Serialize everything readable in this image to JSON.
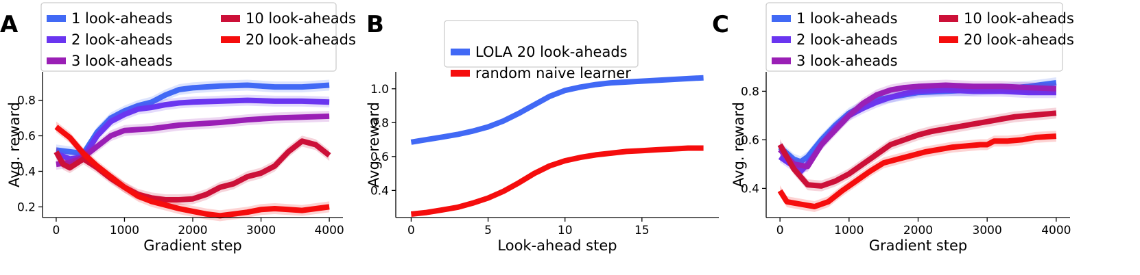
{
  "chart_data": [
    {
      "panel": "A",
      "type": "line",
      "xlabel": "Gradient step",
      "ylabel": "Avg. reward",
      "xlim": [
        -200,
        4200
      ],
      "ylim": [
        0.14,
        0.96
      ],
      "xticks": [
        0,
        1000,
        2000,
        3000,
        4000
      ],
      "yticks": [
        0.2,
        0.4,
        0.6,
        0.8
      ],
      "legend_position": "top-left",
      "legend_columns": 2,
      "series": [
        {
          "name": "1 look-aheads",
          "color": "#4169f5",
          "points": [
            [
              0,
              0.52
            ],
            [
              200,
              0.51
            ],
            [
              400,
              0.5
            ],
            [
              600,
              0.62
            ],
            [
              800,
              0.7
            ],
            [
              1000,
              0.74
            ],
            [
              1200,
              0.77
            ],
            [
              1400,
              0.79
            ],
            [
              1600,
              0.83
            ],
            [
              1800,
              0.86
            ],
            [
              2000,
              0.87
            ],
            [
              2400,
              0.88
            ],
            [
              2800,
              0.885
            ],
            [
              3200,
              0.875
            ],
            [
              3600,
              0.875
            ],
            [
              4000,
              0.885
            ]
          ]
        },
        {
          "name": "2 look-aheads",
          "color": "#6a35f0",
          "points": [
            [
              0,
              0.5
            ],
            [
              200,
              0.47
            ],
            [
              400,
              0.48
            ],
            [
              600,
              0.6
            ],
            [
              800,
              0.68
            ],
            [
              1000,
              0.72
            ],
            [
              1200,
              0.75
            ],
            [
              1400,
              0.76
            ],
            [
              1600,
              0.775
            ],
            [
              1800,
              0.785
            ],
            [
              2000,
              0.79
            ],
            [
              2400,
              0.795
            ],
            [
              2800,
              0.8
            ],
            [
              3200,
              0.795
            ],
            [
              3600,
              0.795
            ],
            [
              4000,
              0.79
            ]
          ]
        },
        {
          "name": "3 look-aheads",
          "color": "#9a1fb5",
          "points": [
            [
              0,
              0.44
            ],
            [
              200,
              0.45
            ],
            [
              400,
              0.48
            ],
            [
              600,
              0.54
            ],
            [
              800,
              0.6
            ],
            [
              1000,
              0.63
            ],
            [
              1200,
              0.635
            ],
            [
              1400,
              0.64
            ],
            [
              1600,
              0.65
            ],
            [
              1800,
              0.66
            ],
            [
              2000,
              0.665
            ],
            [
              2400,
              0.675
            ],
            [
              2800,
              0.69
            ],
            [
              3200,
              0.7
            ],
            [
              3600,
              0.705
            ],
            [
              4000,
              0.71
            ]
          ]
        },
        {
          "name": "10 look-aheads",
          "color": "#cc1038",
          "points": [
            [
              0,
              0.51
            ],
            [
              100,
              0.44
            ],
            [
              200,
              0.42
            ],
            [
              400,
              0.47
            ],
            [
              600,
              0.42
            ],
            [
              800,
              0.36
            ],
            [
              1000,
              0.31
            ],
            [
              1200,
              0.27
            ],
            [
              1400,
              0.25
            ],
            [
              1600,
              0.24
            ],
            [
              1800,
              0.24
            ],
            [
              2000,
              0.245
            ],
            [
              2200,
              0.27
            ],
            [
              2400,
              0.31
            ],
            [
              2600,
              0.33
            ],
            [
              2800,
              0.37
            ],
            [
              3000,
              0.39
            ],
            [
              3200,
              0.43
            ],
            [
              3400,
              0.51
            ],
            [
              3600,
              0.57
            ],
            [
              3800,
              0.55
            ],
            [
              4000,
              0.49
            ]
          ]
        },
        {
          "name": "20 look-aheads",
          "color": "#f50d0d",
          "points": [
            [
              0,
              0.65
            ],
            [
              200,
              0.59
            ],
            [
              400,
              0.5
            ],
            [
              600,
              0.43
            ],
            [
              800,
              0.37
            ],
            [
              1000,
              0.31
            ],
            [
              1200,
              0.26
            ],
            [
              1400,
              0.23
            ],
            [
              1600,
              0.21
            ],
            [
              1800,
              0.19
            ],
            [
              2000,
              0.175
            ],
            [
              2200,
              0.16
            ],
            [
              2400,
              0.15
            ],
            [
              2600,
              0.16
            ],
            [
              2800,
              0.17
            ],
            [
              3000,
              0.185
            ],
            [
              3200,
              0.19
            ],
            [
              3400,
              0.185
            ],
            [
              3600,
              0.18
            ],
            [
              3800,
              0.19
            ],
            [
              4000,
              0.2
            ]
          ]
        }
      ]
    },
    {
      "panel": "B",
      "type": "line",
      "xlabel": "Look-ahead step",
      "ylabel": "Avg. reward",
      "xlim": [
        -1,
        20
      ],
      "ylim": [
        0.24,
        1.1
      ],
      "xticks": [
        0,
        5,
        10,
        15
      ],
      "yticks": [
        0.4,
        0.6,
        0.8,
        1.0
      ],
      "legend_position": "top-center",
      "legend_columns": 1,
      "series": [
        {
          "name": "LOLA 20 look-aheads",
          "color": "#4169f5",
          "points": [
            [
              0,
              0.685
            ],
            [
              1,
              0.7
            ],
            [
              2,
              0.715
            ],
            [
              3,
              0.73
            ],
            [
              4,
              0.75
            ],
            [
              5,
              0.775
            ],
            [
              6,
              0.81
            ],
            [
              7,
              0.855
            ],
            [
              8,
              0.905
            ],
            [
              9,
              0.955
            ],
            [
              10,
              0.99
            ],
            [
              11,
              1.01
            ],
            [
              12,
              1.025
            ],
            [
              13,
              1.035
            ],
            [
              14,
              1.04
            ],
            [
              15,
              1.045
            ],
            [
              16,
              1.05
            ],
            [
              17,
              1.055
            ],
            [
              18,
              1.06
            ],
            [
              19,
              1.065
            ]
          ]
        },
        {
          "name": "random naive learner",
          "color": "#f50d0d",
          "points": [
            [
              0,
              0.26
            ],
            [
              1,
              0.27
            ],
            [
              2,
              0.285
            ],
            [
              3,
              0.3
            ],
            [
              4,
              0.325
            ],
            [
              5,
              0.355
            ],
            [
              6,
              0.395
            ],
            [
              7,
              0.445
            ],
            [
              8,
              0.5
            ],
            [
              9,
              0.545
            ],
            [
              10,
              0.575
            ],
            [
              11,
              0.595
            ],
            [
              12,
              0.61
            ],
            [
              13,
              0.62
            ],
            [
              14,
              0.63
            ],
            [
              15,
              0.635
            ],
            [
              16,
              0.64
            ],
            [
              17,
              0.645
            ],
            [
              18,
              0.65
            ],
            [
              19,
              0.65
            ]
          ]
        }
      ]
    },
    {
      "panel": "C",
      "type": "line",
      "xlabel": "Gradient step",
      "ylabel": "Avg. reward",
      "xlim": [
        -200,
        4200
      ],
      "ylim": [
        0.28,
        0.88
      ],
      "xticks": [
        0,
        1000,
        2000,
        3000,
        4000
      ],
      "yticks": [
        0.4,
        0.6,
        0.8
      ],
      "legend_position": "top-left",
      "legend_columns": 2,
      "series": [
        {
          "name": "1 look-aheads",
          "color": "#4169f5",
          "points": [
            [
              0,
              0.57
            ],
            [
              200,
              0.52
            ],
            [
              300,
              0.51
            ],
            [
              400,
              0.53
            ],
            [
              600,
              0.6
            ],
            [
              800,
              0.66
            ],
            [
              1000,
              0.71
            ],
            [
              1200,
              0.74
            ],
            [
              1400,
              0.765
            ],
            [
              1600,
              0.775
            ],
            [
              1800,
              0.785
            ],
            [
              2000,
              0.795
            ],
            [
              2400,
              0.8
            ],
            [
              2800,
              0.805
            ],
            [
              3200,
              0.81
            ],
            [
              3600,
              0.82
            ],
            [
              4000,
              0.835
            ]
          ]
        },
        {
          "name": "2 look-aheads",
          "color": "#6a35f0",
          "points": [
            [
              0,
              0.53
            ],
            [
              200,
              0.49
            ],
            [
              300,
              0.47
            ],
            [
              400,
              0.5
            ],
            [
              600,
              0.58
            ],
            [
              800,
              0.65
            ],
            [
              1000,
              0.7
            ],
            [
              1200,
              0.73
            ],
            [
              1400,
              0.755
            ],
            [
              1600,
              0.775
            ],
            [
              1800,
              0.79
            ],
            [
              2000,
              0.8
            ],
            [
              2400,
              0.805
            ],
            [
              2800,
              0.8
            ],
            [
              3200,
              0.8
            ],
            [
              3600,
              0.795
            ],
            [
              4000,
              0.795
            ]
          ]
        },
        {
          "name": "3 look-aheads",
          "color": "#9a1fb5",
          "points": [
            [
              0,
              0.56
            ],
            [
              200,
              0.5
            ],
            [
              400,
              0.49
            ],
            [
              600,
              0.58
            ],
            [
              800,
              0.64
            ],
            [
              1000,
              0.7
            ],
            [
              1200,
              0.75
            ],
            [
              1400,
              0.785
            ],
            [
              1600,
              0.805
            ],
            [
              1800,
              0.815
            ],
            [
              2000,
              0.82
            ],
            [
              2400,
              0.825
            ],
            [
              2800,
              0.82
            ],
            [
              3200,
              0.82
            ],
            [
              3600,
              0.815
            ],
            [
              4000,
              0.81
            ]
          ]
        },
        {
          "name": "10 look-aheads",
          "color": "#cc1038",
          "points": [
            [
              0,
              0.58
            ],
            [
              200,
              0.48
            ],
            [
              400,
              0.415
            ],
            [
              600,
              0.41
            ],
            [
              800,
              0.43
            ],
            [
              1000,
              0.46
            ],
            [
              1200,
              0.5
            ],
            [
              1400,
              0.54
            ],
            [
              1600,
              0.58
            ],
            [
              1800,
              0.6
            ],
            [
              2000,
              0.62
            ],
            [
              2200,
              0.635
            ],
            [
              2400,
              0.645
            ],
            [
              2600,
              0.655
            ],
            [
              2800,
              0.665
            ],
            [
              3000,
              0.675
            ],
            [
              3200,
              0.685
            ],
            [
              3400,
              0.695
            ],
            [
              3600,
              0.7
            ],
            [
              3800,
              0.705
            ],
            [
              4000,
              0.71
            ]
          ]
        },
        {
          "name": "20 look-aheads",
          "color": "#f50d0d",
          "points": [
            [
              0,
              0.39
            ],
            [
              100,
              0.345
            ],
            [
              300,
              0.335
            ],
            [
              500,
              0.325
            ],
            [
              700,
              0.345
            ],
            [
              900,
              0.39
            ],
            [
              1100,
              0.43
            ],
            [
              1300,
              0.47
            ],
            [
              1500,
              0.505
            ],
            [
              1700,
              0.52
            ],
            [
              1900,
              0.535
            ],
            [
              2100,
              0.55
            ],
            [
              2300,
              0.56
            ],
            [
              2500,
              0.57
            ],
            [
              2700,
              0.575
            ],
            [
              2900,
              0.58
            ],
            [
              3000,
              0.58
            ],
            [
              3100,
              0.595
            ],
            [
              3300,
              0.595
            ],
            [
              3500,
              0.6
            ],
            [
              3700,
              0.61
            ],
            [
              4000,
              0.615
            ]
          ]
        }
      ]
    }
  ]
}
